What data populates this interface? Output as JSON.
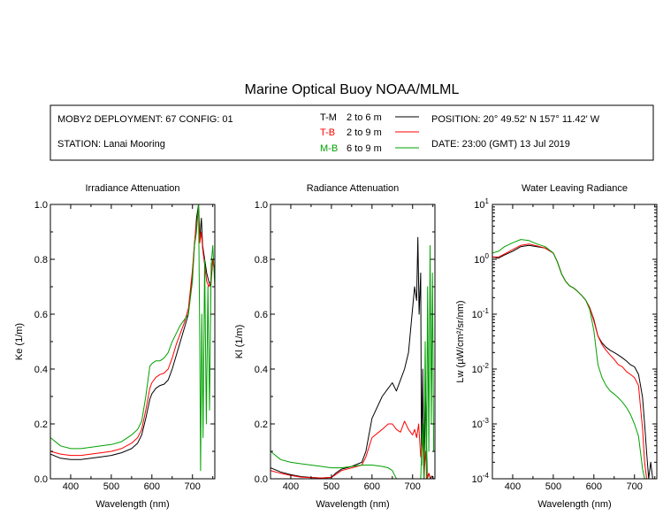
{
  "title": "Marine Optical Buoy NOAA/MLML",
  "info": {
    "deployment": "MOBY2 DEPLOYMENT: 67 CONFIG: 01",
    "station": "STATION: Lanai Mooring",
    "position": "POSITION: 20° 49.52' N   157° 11.42' W",
    "date": "DATE: 23:00 (GMT) 13 Jul 2019"
  },
  "legend": [
    {
      "key": "T-M",
      "range": "2 to 6  m",
      "color": "#000000"
    },
    {
      "key": "T-B",
      "range": "2 to 9  m",
      "color": "#ff0000"
    },
    {
      "key": "M-B",
      "range": "6 to 9  m",
      "color": "#00a000"
    }
  ],
  "chart_data": [
    {
      "type": "line",
      "title": "Irradiance Attenuation",
      "xlabel": "Wavelength (nm)",
      "ylabel": "Ke  (1/m)",
      "xlim": [
        350,
        755
      ],
      "ylim": [
        0,
        1
      ],
      "xticks": [
        "400",
        "500",
        "600",
        "700"
      ],
      "yticks": [
        "0.0",
        "0.2",
        "0.4",
        "0.6",
        "0.8",
        "1.0"
      ],
      "series": [
        {
          "name": "T-M",
          "color": "#000000",
          "x": [
            350,
            375,
            400,
            425,
            450,
            475,
            500,
            525,
            550,
            565,
            575,
            585,
            595,
            600,
            610,
            620,
            630,
            640,
            650,
            660,
            670,
            680,
            690,
            700,
            705,
            710,
            715,
            718,
            722,
            725,
            730,
            735,
            740,
            745,
            750,
            755
          ],
          "y": [
            0.09,
            0.075,
            0.07,
            0.07,
            0.075,
            0.08,
            0.085,
            0.095,
            0.11,
            0.13,
            0.16,
            0.22,
            0.29,
            0.31,
            0.33,
            0.34,
            0.345,
            0.36,
            0.4,
            0.45,
            0.5,
            0.55,
            0.6,
            0.75,
            0.85,
            0.95,
            1.0,
            0.88,
            0.95,
            0.85,
            0.8,
            0.75,
            0.72,
            0.7,
            0.8,
            0.75
          ]
        },
        {
          "name": "T-B",
          "color": "#ff0000",
          "x": [
            350,
            375,
            400,
            425,
            450,
            475,
            500,
            525,
            550,
            565,
            575,
            585,
            595,
            600,
            610,
            620,
            630,
            640,
            650,
            660,
            670,
            680,
            690,
            700,
            705,
            710,
            715,
            718,
            722,
            725,
            730,
            735,
            740,
            745,
            750,
            755
          ],
          "y": [
            0.1,
            0.09,
            0.085,
            0.085,
            0.09,
            0.095,
            0.1,
            0.11,
            0.13,
            0.15,
            0.18,
            0.25,
            0.33,
            0.35,
            0.37,
            0.38,
            0.385,
            0.4,
            0.44,
            0.49,
            0.53,
            0.57,
            0.62,
            0.76,
            0.86,
            0.93,
            0.98,
            0.86,
            0.9,
            0.84,
            0.78,
            0.72,
            0.7,
            0.72,
            0.8,
            0.75
          ]
        },
        {
          "name": "M-B",
          "color": "#00a000",
          "x": [
            350,
            375,
            400,
            425,
            450,
            475,
            500,
            525,
            550,
            565,
            575,
            585,
            595,
            600,
            610,
            620,
            630,
            640,
            650,
            660,
            670,
            680,
            690,
            700,
            705,
            710,
            715,
            718,
            720,
            723,
            726,
            730,
            734,
            738,
            742,
            746,
            750,
            755
          ],
          "y": [
            0.15,
            0.12,
            0.11,
            0.11,
            0.115,
            0.12,
            0.125,
            0.135,
            0.16,
            0.18,
            0.21,
            0.3,
            0.41,
            0.42,
            0.43,
            0.43,
            0.44,
            0.46,
            0.5,
            0.53,
            0.56,
            0.58,
            0.6,
            0.72,
            0.85,
            0.9,
            1.0,
            0.5,
            0.03,
            0.6,
            0.15,
            0.8,
            0.2,
            0.7,
            0.25,
            0.78,
            0.85,
            0.7
          ]
        }
      ]
    },
    {
      "type": "line",
      "title": "Radiance Attenuation",
      "xlabel": "Wavelength (nm)",
      "ylabel": "Kl  (1/m)",
      "xlim": [
        350,
        755
      ],
      "ylim": [
        0,
        1
      ],
      "xticks": [
        "400",
        "500",
        "600",
        "700"
      ],
      "yticks": [
        "0.0",
        "0.2",
        "0.4",
        "0.6",
        "0.8",
        "1.0"
      ],
      "series": [
        {
          "name": "T-M",
          "color": "#000000",
          "x": [
            350,
            375,
            400,
            425,
            450,
            475,
            500,
            510,
            525,
            550,
            575,
            585,
            600,
            625,
            640,
            650,
            660,
            670,
            680,
            690,
            700,
            705,
            710,
            713,
            716,
            720,
            722,
            725,
            728,
            732,
            736,
            740,
            744,
            748,
            752
          ],
          "y": [
            0.04,
            0.025,
            0.015,
            0.008,
            0.005,
            0.003,
            0.005,
            0.02,
            0.035,
            0.045,
            0.06,
            0.1,
            0.22,
            0.3,
            0.33,
            0.35,
            0.32,
            0.36,
            0.4,
            0.46,
            0.62,
            0.7,
            0.65,
            0.88,
            0.6,
            0.75,
            0.05,
            0.4,
            0.0,
            0.3,
            0.0,
            0.02,
            0.0,
            0.01,
            0.0
          ]
        },
        {
          "name": "T-B",
          "color": "#ff0000",
          "x": [
            350,
            375,
            400,
            425,
            450,
            475,
            500,
            510,
            525,
            550,
            575,
            585,
            600,
            625,
            640,
            650,
            660,
            670,
            680,
            690,
            700,
            705,
            710,
            715,
            720,
            725,
            728,
            732,
            736,
            740,
            745,
            752
          ],
          "y": [
            0.03,
            0.02,
            0.012,
            0.006,
            0.004,
            0.003,
            0.005,
            0.015,
            0.03,
            0.04,
            0.05,
            0.08,
            0.15,
            0.18,
            0.2,
            0.2,
            0.18,
            0.17,
            0.21,
            0.18,
            0.16,
            0.18,
            0.15,
            0.2,
            0.08,
            0.15,
            0.0,
            0.1,
            0.0,
            0.02,
            0.0,
            0.0
          ]
        },
        {
          "name": "M-B",
          "color": "#00a000",
          "x": [
            350,
            375,
            400,
            425,
            450,
            475,
            500,
            525,
            550,
            575,
            600,
            625,
            640,
            650,
            660,
            670,
            680,
            690,
            700,
            705,
            710,
            715,
            720,
            725,
            728,
            731,
            734,
            737,
            740,
            743,
            746,
            749,
            752
          ],
          "y": [
            0.1,
            0.07,
            0.06,
            0.055,
            0.05,
            0.045,
            0.04,
            0.04,
            0.045,
            0.05,
            0.05,
            0.045,
            0.04,
            0.03,
            0.0,
            0.0,
            0.0,
            0.0,
            0.0,
            0.0,
            0.0,
            0.0,
            0.0,
            0.2,
            0.0,
            0.5,
            0.0,
            0.7,
            0.1,
            0.85,
            0.2,
            0.75,
            0.1
          ]
        }
      ]
    },
    {
      "type": "line",
      "title": "Water Leaving Radiance",
      "xlabel": "Wavelength (nm)",
      "ylabel": "Lw  (µW/cm²/sr/nm)",
      "yscale": "log",
      "xlim": [
        350,
        755
      ],
      "ylim": [
        0.0001,
        10
      ],
      "xticks": [
        "400",
        "500",
        "600",
        "700"
      ],
      "yticks": [
        "10^1",
        "10^0",
        "10^-1",
        "10^-2",
        "10^-3",
        "10^-4"
      ],
      "series": [
        {
          "name": "T-M",
          "color": "#000000",
          "x": [
            350,
            365,
            380,
            400,
            420,
            440,
            460,
            480,
            500,
            510,
            520,
            530,
            540,
            550,
            560,
            570,
            580,
            590,
            600,
            610,
            620,
            630,
            640,
            650,
            660,
            670,
            680,
            690,
            700,
            710,
            715,
            720,
            725,
            730,
            735,
            740,
            745
          ],
          "y": [
            1.1,
            1.05,
            1.2,
            1.4,
            1.7,
            1.8,
            1.7,
            1.6,
            1.3,
            0.9,
            0.55,
            0.4,
            0.33,
            0.3,
            0.26,
            0.22,
            0.18,
            0.13,
            0.08,
            0.04,
            0.03,
            0.025,
            0.022,
            0.02,
            0.018,
            0.016,
            0.014,
            0.012,
            0.011,
            0.008,
            0.005,
            0.003,
            0.001,
            0.0003,
            0.0001,
            0.0002,
            0.0001
          ]
        },
        {
          "name": "T-B",
          "color": "#ff0000",
          "x": [
            350,
            365,
            380,
            400,
            420,
            440,
            460,
            480,
            500,
            510,
            520,
            530,
            540,
            550,
            560,
            570,
            580,
            590,
            600,
            610,
            620,
            630,
            640,
            650,
            660,
            670,
            680,
            690,
            700,
            710,
            715,
            720,
            725,
            730
          ],
          "y": [
            1.1,
            1.1,
            1.25,
            1.5,
            1.8,
            1.9,
            1.75,
            1.6,
            1.3,
            0.9,
            0.55,
            0.4,
            0.33,
            0.3,
            0.26,
            0.22,
            0.18,
            0.13,
            0.075,
            0.04,
            0.028,
            0.022,
            0.018,
            0.015,
            0.012,
            0.011,
            0.009,
            0.008,
            0.007,
            0.005,
            0.002,
            0.0008,
            0.0002,
            0.0001
          ]
        },
        {
          "name": "M-B",
          "color": "#00a000",
          "x": [
            350,
            365,
            380,
            400,
            420,
            440,
            460,
            480,
            500,
            510,
            520,
            530,
            540,
            550,
            560,
            570,
            580,
            590,
            600,
            610,
            620,
            630,
            640,
            650,
            660,
            670,
            680,
            690,
            700,
            710,
            715,
            720,
            725
          ],
          "y": [
            1.3,
            1.4,
            1.7,
            2.0,
            2.3,
            2.2,
            1.9,
            1.7,
            1.3,
            0.9,
            0.55,
            0.4,
            0.33,
            0.3,
            0.26,
            0.22,
            0.18,
            0.12,
            0.05,
            0.012,
            0.007,
            0.005,
            0.004,
            0.0035,
            0.003,
            0.0025,
            0.002,
            0.0015,
            0.001,
            0.0006,
            0.0003,
            0.00015,
            0.0001
          ]
        }
      ]
    }
  ]
}
